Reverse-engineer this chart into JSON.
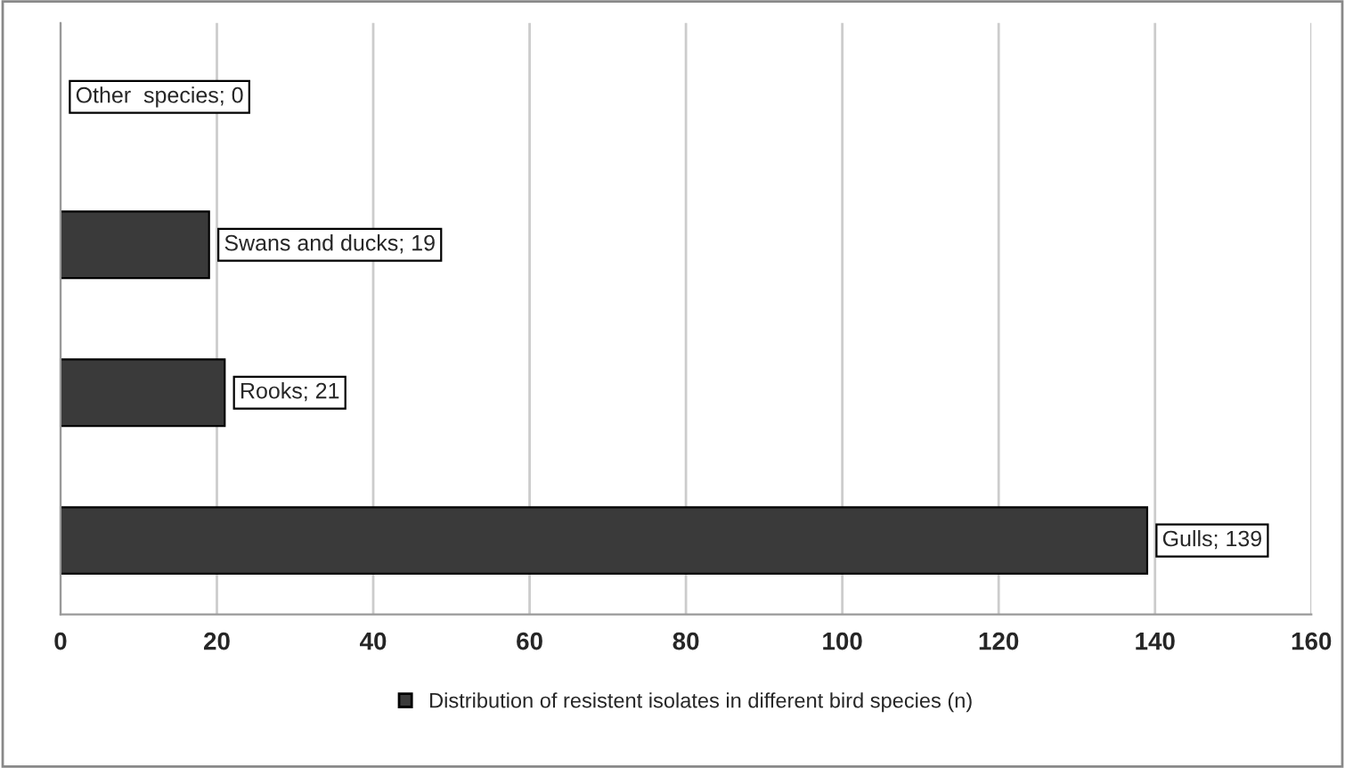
{
  "chart_data": {
    "type": "bar",
    "orientation": "horizontal",
    "categories": [
      null,
      null,
      null,
      null
    ],
    "series": [
      {
        "name": "Distribution of resistent isolates in different bird species (n)",
        "color": "#3a3a3a",
        "values": [
          0,
          19,
          21,
          139
        ],
        "value_labels": [
          "Other  species; 0",
          "Swans and ducks; 19",
          "Rooks; 21",
          "Gulls; 139"
        ]
      }
    ],
    "xlim": [
      0,
      160
    ],
    "xticks": [
      0,
      20,
      40,
      60,
      80,
      100,
      120,
      140,
      160
    ],
    "grid": "x",
    "legend": "bottom"
  }
}
